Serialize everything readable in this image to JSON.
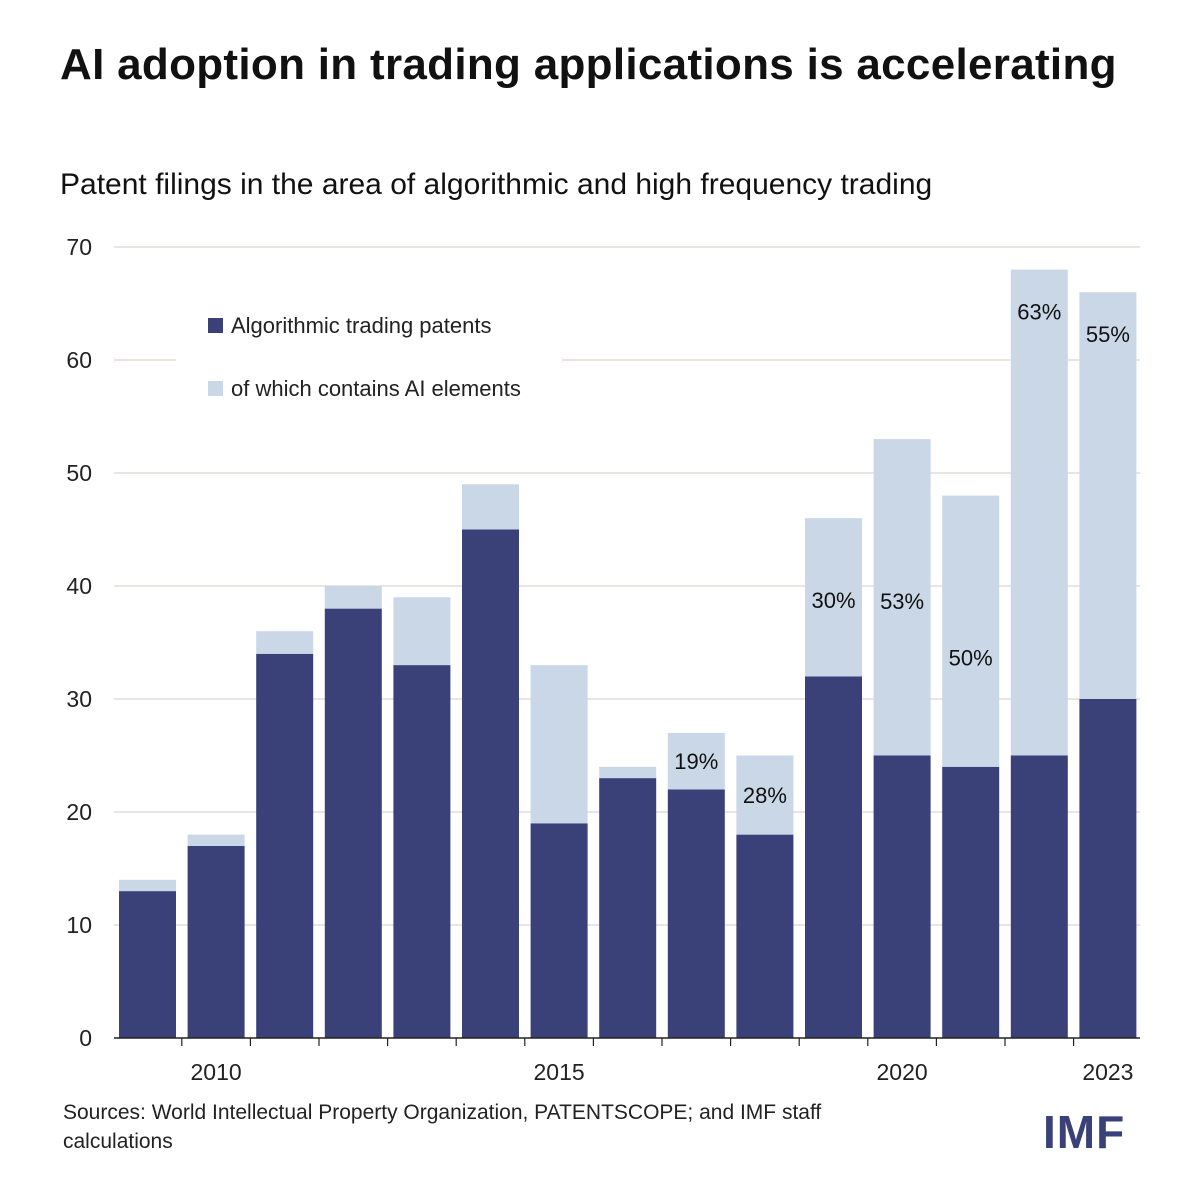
{
  "title": "AI adoption in trading applications is accelerating",
  "subtitle": "Patent filings in the area of algorithmic and high frequency trading",
  "source": "Sources: World Intellectual Property Organization, PATENTSCOPE; and IMF staff calculations",
  "logo": "IMF",
  "chart_data": {
    "type": "bar",
    "stacked": true,
    "categories": [
      2009,
      2010,
      2011,
      2012,
      2013,
      2014,
      2015,
      2016,
      2017,
      2018,
      2019,
      2020,
      2021,
      2022,
      2023
    ],
    "x_tick_labels": [
      "2010",
      "2015",
      "2020",
      "2023"
    ],
    "x_tick_categories": [
      2010,
      2015,
      2020,
      2023
    ],
    "series": [
      {
        "name": "Algorithmic trading patents",
        "color": "#3a4179",
        "values": [
          13,
          17,
          34,
          38,
          33,
          45,
          19,
          23,
          22,
          18,
          32,
          25,
          24,
          25,
          30
        ]
      },
      {
        "name": "of which contains AI elements",
        "color": "#c9d7e6",
        "values": [
          1,
          1,
          2,
          2,
          6,
          4,
          14,
          1,
          5,
          7,
          14,
          28,
          24,
          43,
          36
        ]
      }
    ],
    "data_labels": [
      null,
      null,
      null,
      null,
      null,
      null,
      null,
      null,
      "19%",
      "28%",
      "30%",
      "53%",
      "50%",
      "63%",
      "55%"
    ],
    "ylim": [
      0,
      70
    ],
    "yticks": [
      0,
      10,
      20,
      30,
      40,
      50,
      60,
      70
    ],
    "grid": true,
    "legend_placement": "top-left"
  }
}
